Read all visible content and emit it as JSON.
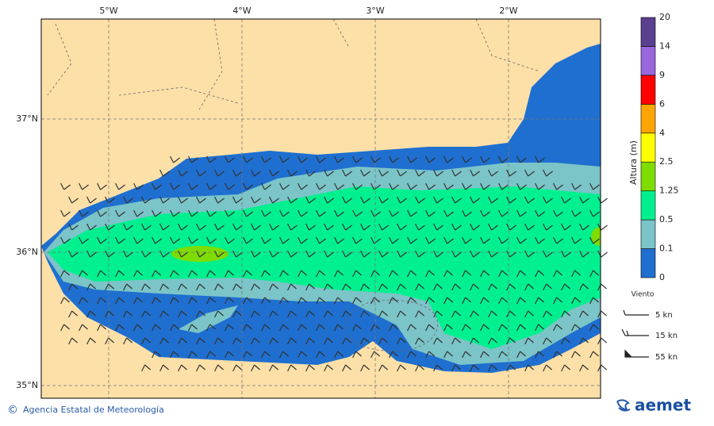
{
  "map": {
    "lon_labels": [
      "5°W",
      "4°W",
      "3°W",
      "2°W"
    ],
    "lat_labels": [
      "37°N",
      "36°N",
      "35°N"
    ]
  },
  "colorbar": {
    "title": "Altura (m)",
    "labels": [
      "0",
      "0.1",
      "0.5",
      "1.25",
      "2.5",
      "4",
      "6",
      "9",
      "14",
      "20"
    ],
    "colors": [
      "#1f6fd0",
      "#7bc4c8",
      "#00f08f",
      "#7fdc00",
      "#ffff00",
      "#ffa500",
      "#ff0000",
      "#9966dd",
      "#5b3f90"
    ]
  },
  "wind_legend": {
    "title": "Viento",
    "items": [
      "5 kn",
      "15 kn",
      "55 kn"
    ]
  },
  "footer": {
    "copyright": "©",
    "agency": "Agencia Estatal de Meteorología",
    "logo": "aemet"
  }
}
